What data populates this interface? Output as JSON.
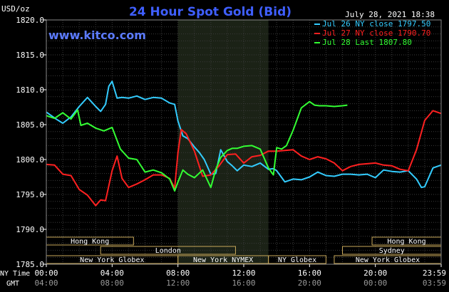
{
  "chart_data": {
    "type": "line",
    "title": "24 Hour Spot Gold (Bid)",
    "ylabel": "USD/oz",
    "watermark": "www.kitco.com",
    "date_stamp": "July 28, 2021 18:38",
    "ylim": [
      1785.0,
      1820.0
    ],
    "yticks": [
      "1820.0",
      "1815.0",
      "1810.0",
      "1805.0",
      "1800.0",
      "1795.0",
      "1790.0",
      "1785.0"
    ],
    "xlim": [
      0,
      24
    ],
    "x_row_label_ny": "NY Time",
    "x_row_label_gmt": "GMT",
    "xticks_ny": [
      "00:00",
      "04:00",
      "08:00",
      "12:00",
      "16:00",
      "20:00",
      "23:59"
    ],
    "xticks_gmt": [
      "04:00",
      "08:00",
      "12:00",
      "16:00",
      "20:00",
      "00:00",
      "03:59"
    ],
    "grid": true,
    "legend_position": "top-right",
    "shaded_hours": [
      8,
      13.5
    ],
    "sessions": [
      {
        "name": "Hong Kong",
        "start": 0,
        "end": 5.3,
        "row": 0
      },
      {
        "name": "London",
        "start": 3.3,
        "end": 11.5,
        "row": 1
      },
      {
        "name": "New York Globex",
        "start": 0,
        "end": 8,
        "row": 2
      },
      {
        "name": "New York NYMEX",
        "start": 8,
        "end": 13.5,
        "row": 2
      },
      {
        "name": "NY Globex",
        "start": 13.5,
        "end": 17,
        "row": 2
      },
      {
        "name": "Hong Kong",
        "start": 19.8,
        "end": 24,
        "row": 0
      },
      {
        "name": "Sydney",
        "start": 18,
        "end": 24,
        "row": 1
      },
      {
        "name": "New York Globex",
        "start": 17.5,
        "end": 24,
        "row": 2
      }
    ],
    "series": [
      {
        "name": "Jul 26 NY close 1797.50",
        "color": "#33ccff",
        "x": [
          0,
          0.3,
          0.6,
          1.0,
          1.5,
          2.0,
          2.5,
          3.0,
          3.3,
          3.6,
          3.8,
          4.0,
          4.3,
          4.6,
          5.0,
          5.5,
          6.0,
          6.5,
          7.0,
          7.5,
          7.8,
          8.0,
          8.3,
          8.6,
          9.0,
          9.3,
          9.6,
          10.0,
          10.3,
          10.6,
          11.0,
          11.3,
          11.6,
          12.0,
          12.5,
          13.0,
          13.5,
          13.8,
          14.0,
          14.5,
          15.0,
          15.5,
          16.0,
          16.5,
          17.0,
          17.5,
          18.0,
          18.5,
          19.0,
          19.5,
          20.0,
          20.5,
          21.0,
          21.5,
          22.0,
          22.5,
          22.8,
          23.0,
          23.5,
          23.99
        ],
        "values": [
          1806.8,
          1806.3,
          1805.8,
          1805.2,
          1806.1,
          1807.6,
          1808.9,
          1807.6,
          1806.9,
          1807.9,
          1810.5,
          1811.2,
          1808.8,
          1808.9,
          1808.8,
          1809.1,
          1808.6,
          1808.9,
          1808.8,
          1808.1,
          1807.9,
          1805.5,
          1803.4,
          1803.0,
          1801.8,
          1801.0,
          1800.0,
          1797.9,
          1798.0,
          1801.4,
          1799.7,
          1799.1,
          1798.4,
          1799.2,
          1799.0,
          1799.5,
          1798.6,
          1798.7,
          1798.4,
          1796.8,
          1797.2,
          1797.1,
          1797.5,
          1798.2,
          1797.7,
          1797.6,
          1797.9,
          1797.9,
          1797.8,
          1797.9,
          1797.4,
          1798.5,
          1798.3,
          1798.2,
          1798.4,
          1797.2,
          1796.0,
          1796.1,
          1798.8,
          1799.2
        ]
      },
      {
        "name": "Jul 27 NY close 1790.70",
        "color": "#ff2020",
        "x": [
          0,
          0.5,
          1.0,
          1.5,
          2.0,
          2.5,
          3.0,
          3.3,
          3.6,
          4.0,
          4.3,
          4.6,
          5.0,
          5.5,
          6.0,
          6.5,
          7.0,
          7.5,
          7.8,
          8.0,
          8.2,
          8.5,
          9.0,
          9.5,
          10.0,
          10.5,
          11.0,
          11.5,
          12.0,
          12.5,
          13.0,
          13.5,
          14.0,
          14.5,
          15.0,
          15.5,
          16.0,
          16.5,
          17.0,
          17.5,
          18.0,
          18.5,
          19.0,
          19.5,
          20.0,
          20.5,
          21.0,
          21.5,
          22.0,
          22.5,
          23.0,
          23.5,
          23.99
        ],
        "values": [
          1799.3,
          1799.2,
          1797.9,
          1797.7,
          1795.7,
          1794.9,
          1793.4,
          1794.2,
          1794.1,
          1798.4,
          1800.5,
          1797.3,
          1796.0,
          1796.5,
          1797.1,
          1797.8,
          1797.8,
          1797.3,
          1795.9,
          1801.0,
          1804.3,
          1803.7,
          1801.2,
          1797.6,
          1797.8,
          1799.1,
          1800.7,
          1800.8,
          1799.5,
          1800.4,
          1800.6,
          1801.2,
          1801.2,
          1801.3,
          1801.4,
          1800.5,
          1800.0,
          1800.4,
          1800.1,
          1799.5,
          1798.4,
          1799.0,
          1799.3,
          1799.4,
          1799.5,
          1799.2,
          1799.1,
          1798.6,
          1798.4,
          1801.4,
          1805.6,
          1807.0,
          1806.6
        ]
      },
      {
        "name": "Jul 28 Last 1807.80",
        "color": "#33ff33",
        "x": [
          0,
          0.5,
          1.0,
          1.5,
          1.9,
          2.1,
          2.5,
          3.0,
          3.5,
          4.0,
          4.5,
          5.0,
          5.5,
          6.0,
          6.5,
          7.0,
          7.5,
          7.8,
          8.0,
          8.3,
          8.6,
          9.0,
          9.5,
          10.0,
          10.3,
          10.6,
          11.0,
          11.3,
          11.6,
          12.0,
          12.5,
          13.0,
          13.5,
          13.8,
          14.0,
          14.3,
          14.6,
          15.0,
          15.5,
          16.0,
          16.3,
          16.6,
          17.0,
          17.5,
          18.0,
          18.3
        ],
        "values": [
          1806.3,
          1805.9,
          1806.7,
          1805.8,
          1807.1,
          1804.9,
          1805.2,
          1804.5,
          1804.1,
          1804.6,
          1801.5,
          1800.2,
          1800.0,
          1798.2,
          1798.5,
          1798.1,
          1797.2,
          1795.5,
          1796.8,
          1798.5,
          1797.9,
          1797.4,
          1798.5,
          1796.0,
          1798.6,
          1800.3,
          1801.3,
          1801.6,
          1801.6,
          1801.9,
          1802.0,
          1801.5,
          1798.8,
          1797.8,
          1801.7,
          1801.5,
          1802.0,
          1804.2,
          1807.4,
          1808.3,
          1807.8,
          1807.7,
          1807.7,
          1807.6,
          1807.7,
          1807.8
        ]
      }
    ]
  }
}
